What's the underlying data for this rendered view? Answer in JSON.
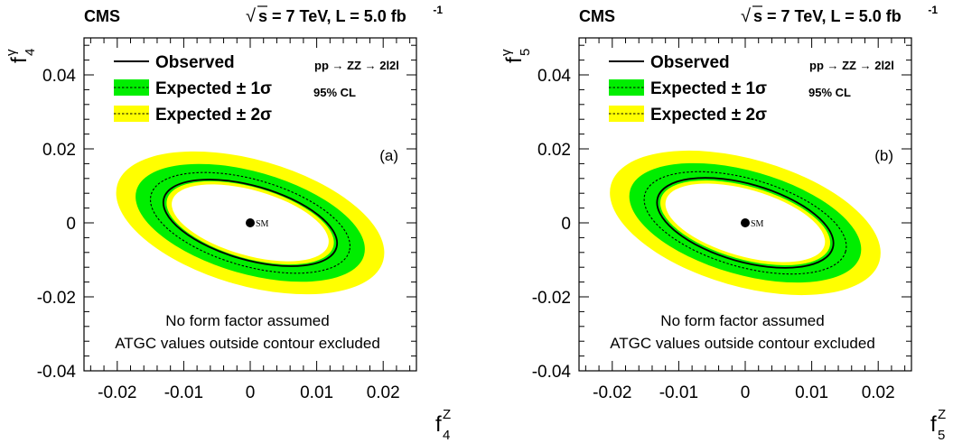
{
  "chart_data": [
    {
      "type": "contour",
      "panel_label": "(a)",
      "experiment": "CMS",
      "energy_text": "s = 7 TeV, L = 5.0 fb",
      "lumi_exponent": "-1",
      "sqrt_symbol": "√",
      "process": "pp → ZZ → 2l2l",
      "cl_text": "95% CL",
      "xlabel": {
        "base": "f",
        "sup": "Z",
        "sub": "4"
      },
      "ylabel": {
        "base": "f",
        "sup": "γ",
        "sub": "4"
      },
      "xlim": [
        -0.025,
        0.025
      ],
      "ylim": [
        -0.04,
        0.05
      ],
      "xticks": [
        -0.02,
        -0.01,
        0,
        0.01,
        0.02
      ],
      "xtick_labels": [
        "-0.02",
        "-0.01",
        "0",
        "0.01",
        "0.02"
      ],
      "yticks": [
        -0.04,
        -0.02,
        0,
        0.02,
        0.04
      ],
      "ytick_labels": [
        "-0.04",
        "-0.02",
        "0",
        "0.02",
        "0.04"
      ],
      "legend": [
        {
          "label": "Observed",
          "style": "line"
        },
        {
          "label": "Expected ± 1σ",
          "style": "band1"
        },
        {
          "label": "Expected ± 2σ",
          "style": "band2"
        }
      ],
      "sm_point": {
        "x": 0,
        "y": 0,
        "label": "SM"
      },
      "notes": [
        "No form factor assumed",
        "ATGC values outside contour excluded"
      ],
      "contours": {
        "center_x": 0.0,
        "center_y": 0.0,
        "rotation_deg": -16,
        "plus2sigma": {
          "a": 0.0208,
          "b": 0.017
        },
        "plus1sigma": {
          "a": 0.0178,
          "b": 0.0138
        },
        "expected": {
          "a": 0.0155,
          "b": 0.0117
        },
        "minus1sigma": {
          "a": 0.013,
          "b": 0.0096
        },
        "minus2sigma": {
          "a": 0.0122,
          "b": 0.0088
        },
        "observed": {
          "a": 0.0135,
          "b": 0.01
        }
      },
      "colors": {
        "band1": "#00ee00",
        "band2": "#ffff00"
      }
    },
    {
      "type": "contour",
      "panel_label": "(b)",
      "experiment": "CMS",
      "energy_text": "s = 7 TeV, L = 5.0 fb",
      "lumi_exponent": "-1",
      "sqrt_symbol": "√",
      "process": "pp → ZZ → 2l2l",
      "cl_text": "95% CL",
      "xlabel": {
        "base": "f",
        "sup": "Z",
        "sub": "5"
      },
      "ylabel": {
        "base": "f",
        "sup": "γ",
        "sub": "5"
      },
      "xlim": [
        -0.025,
        0.025
      ],
      "ylim": [
        -0.04,
        0.05
      ],
      "xticks": [
        -0.02,
        -0.01,
        0,
        0.01,
        0.02
      ],
      "xtick_labels": [
        "-0.02",
        "-0.01",
        "0",
        "0.01",
        "0.02"
      ],
      "yticks": [
        -0.04,
        -0.02,
        0,
        0.02,
        0.04
      ],
      "ytick_labels": [
        "-0.04",
        "-0.02",
        "0",
        "0.02",
        "0.04"
      ],
      "legend": [
        {
          "label": "Observed",
          "style": "line"
        },
        {
          "label": "Expected ± 1σ",
          "style": "band1"
        },
        {
          "label": "Expected ± 2σ",
          "style": "band2"
        }
      ],
      "sm_point": {
        "x": 0,
        "y": 0,
        "label": "SM"
      },
      "notes": [
        "No form factor assumed",
        "ATGC values outside contour excluded"
      ],
      "contours": {
        "center_x": 0.0,
        "center_y": 0.0,
        "rotation_deg": -16,
        "plus2sigma": {
          "a": 0.021,
          "b": 0.0172
        },
        "plus1sigma": {
          "a": 0.018,
          "b": 0.014
        },
        "expected": {
          "a": 0.0157,
          "b": 0.0119
        },
        "minus1sigma": {
          "a": 0.0132,
          "b": 0.0098
        },
        "minus2sigma": {
          "a": 0.0124,
          "b": 0.009
        },
        "observed": {
          "a": 0.0137,
          "b": 0.0105
        }
      },
      "colors": {
        "band1": "#00ee00",
        "band2": "#ffff00"
      }
    }
  ]
}
